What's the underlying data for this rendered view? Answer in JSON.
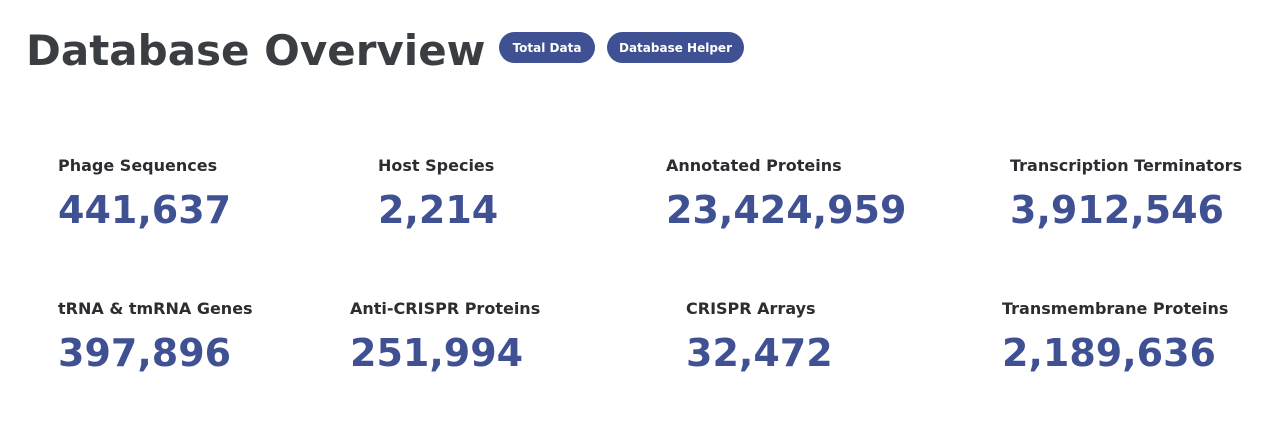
{
  "header": {
    "title": "Database Overview",
    "buttons": {
      "total_data": "Total Data",
      "database_helper": "Database Helper"
    }
  },
  "stats": [
    {
      "label": "Phage Sequences",
      "value": "441,637"
    },
    {
      "label": "Host Species",
      "value": "2,214"
    },
    {
      "label": "Annotated Proteins",
      "value": "23,424,959"
    },
    {
      "label": "Transcription Terminators",
      "value": "3,912,546"
    },
    {
      "label": "tRNA & tmRNA Genes",
      "value": "397,896"
    },
    {
      "label": "Anti-CRISPR Proteins",
      "value": "251,994"
    },
    {
      "label": "CRISPR Arrays",
      "value": "32,472"
    },
    {
      "label": "Transmembrane Proteins",
      "value": "2,189,636"
    }
  ],
  "colors": {
    "accent": "#3f5093",
    "title_text": "#3a3d41",
    "label_text": "#2b2d30",
    "background": "#ffffff"
  }
}
